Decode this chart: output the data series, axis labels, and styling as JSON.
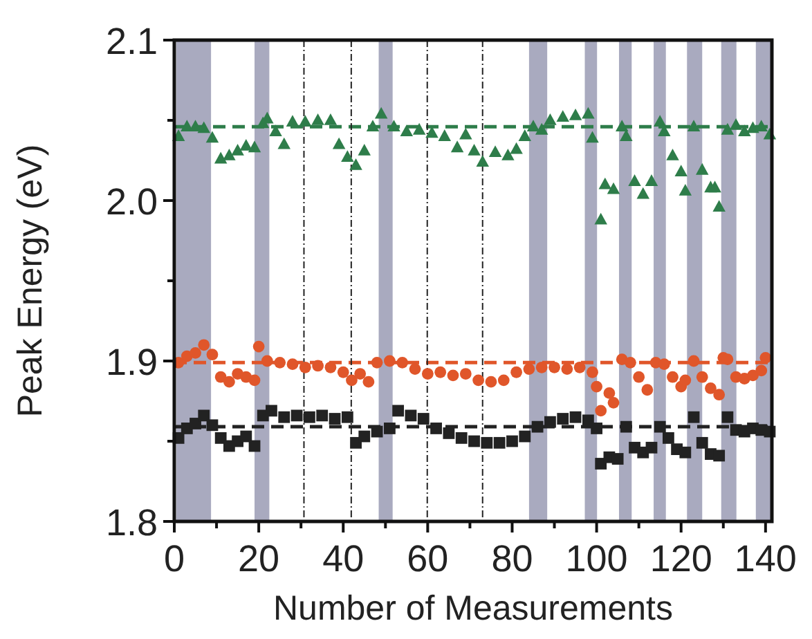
{
  "chart_data": {
    "type": "scatter",
    "xlabel": "Number of Measurements",
    "ylabel": "Peak Energy (eV)",
    "xlim": [
      0,
      141.5
    ],
    "ylim": [
      1.8,
      2.1
    ],
    "xticks": [
      0,
      {
        "value": 10,
        "label": null
      },
      20,
      {
        "value": 30,
        "label": null
      },
      40,
      {
        "value": 50,
        "label": null
      },
      60,
      {
        "value": 70,
        "label": null
      },
      80,
      {
        "value": 90,
        "label": null
      },
      100,
      {
        "value": 110,
        "label": null
      },
      120,
      {
        "value": 130,
        "label": null
      },
      140
    ],
    "yticks": [
      1.8,
      {
        "value": 1.85,
        "label": null
      },
      1.9,
      {
        "value": 1.95,
        "label": null
      },
      {
        "value": 2,
        "label": "2.0"
      },
      {
        "value": 2.05,
        "label": null
      },
      2.1
    ],
    "series": [
      {
        "color": "#2e7d4a",
        "marker": "triangle",
        "x": [
          1,
          3,
          5,
          7,
          9,
          11,
          13,
          15,
          17,
          19,
          21,
          22,
          24,
          26,
          28,
          31,
          34,
          37,
          39,
          41,
          43,
          45,
          47,
          49,
          52,
          55,
          58,
          61,
          64,
          67,
          69,
          71,
          73,
          76,
          79,
          81,
          83,
          85,
          87,
          89,
          92,
          95,
          98,
          99,
          101,
          102,
          104,
          106,
          107,
          109,
          111,
          113,
          115,
          116,
          118,
          120,
          121,
          123,
          125,
          127,
          128,
          129,
          131,
          133,
          135,
          137,
          139,
          141
        ],
        "values": [
          2.04,
          2.046,
          2.046,
          2.045,
          2.039,
          2.026,
          2.028,
          2.031,
          2.034,
          2.033,
          2.048,
          2.051,
          2.043,
          2.035,
          2.049,
          2.049,
          2.05,
          2.05,
          2.035,
          2.027,
          2.022,
          2.031,
          2.046,
          2.054,
          2.046,
          2.043,
          2.044,
          2.042,
          2.04,
          2.033,
          2.041,
          2.031,
          2.024,
          2.03,
          2.028,
          2.032,
          2.04,
          2.046,
          2.044,
          2.05,
          2.052,
          2.053,
          2.054,
          2.039,
          1.988,
          2.01,
          2.007,
          2.046,
          2.04,
          2.012,
          2.004,
          2.012,
          2.049,
          2.043,
          2.028,
          2.018,
          2.006,
          2.046,
          2.019,
          2.008,
          2.008,
          1.996,
          2.044,
          2.047,
          2.043,
          2.045,
          2.046,
          2.041
        ]
      },
      {
        "color": "#e0562a",
        "marker": "circle",
        "x": [
          1,
          3,
          5,
          7,
          9,
          11,
          13,
          15,
          17,
          19,
          20,
          22,
          25,
          28,
          31,
          34,
          37,
          40,
          42,
          44,
          46,
          48,
          51,
          54,
          57,
          60,
          63,
          66,
          69,
          72,
          75,
          78,
          81,
          84,
          87,
          90,
          93,
          96,
          99,
          100,
          101,
          103,
          104,
          106,
          108,
          110,
          112,
          114,
          116,
          118,
          120,
          121,
          123,
          125,
          127,
          129,
          130,
          131,
          133,
          135,
          137,
          139,
          140
        ],
        "values": [
          1.899,
          1.903,
          1.905,
          1.91,
          1.904,
          1.89,
          1.887,
          1.892,
          1.89,
          1.888,
          1.909,
          1.9,
          1.899,
          1.898,
          1.896,
          1.897,
          1.896,
          1.893,
          1.888,
          1.892,
          1.887,
          1.899,
          1.9,
          1.899,
          1.895,
          1.892,
          1.893,
          1.891,
          1.892,
          1.888,
          1.887,
          1.888,
          1.893,
          1.895,
          1.896,
          1.896,
          1.895,
          1.896,
          1.893,
          1.884,
          1.869,
          1.88,
          1.874,
          1.901,
          1.899,
          1.89,
          1.882,
          1.899,
          1.898,
          1.89,
          1.884,
          1.888,
          1.9,
          1.89,
          1.883,
          1.879,
          1.902,
          1.901,
          1.89,
          1.889,
          1.891,
          1.894,
          1.902
        ]
      },
      {
        "color": "#222222",
        "marker": "square",
        "x": [
          1,
          3,
          5,
          7,
          9,
          11,
          13,
          15,
          17,
          19,
          21,
          23,
          26,
          29,
          32,
          35,
          38,
          41,
          43,
          45,
          48,
          51,
          53,
          56,
          59,
          62,
          65,
          68,
          71,
          74,
          77,
          80,
          83,
          86,
          89,
          92,
          95,
          98,
          100,
          101,
          103,
          105,
          107,
          109,
          111,
          113,
          115,
          117,
          119,
          121,
          123,
          125,
          127,
          129,
          131,
          133,
          135,
          137,
          139,
          141
        ],
        "values": [
          1.852,
          1.858,
          1.861,
          1.866,
          1.86,
          1.852,
          1.847,
          1.85,
          1.853,
          1.847,
          1.866,
          1.869,
          1.865,
          1.866,
          1.865,
          1.866,
          1.864,
          1.865,
          1.849,
          1.853,
          1.856,
          1.858,
          1.869,
          1.866,
          1.864,
          1.858,
          1.855,
          1.852,
          1.85,
          1.849,
          1.849,
          1.85,
          1.853,
          1.859,
          1.862,
          1.864,
          1.865,
          1.863,
          1.858,
          1.836,
          1.84,
          1.839,
          1.859,
          1.846,
          1.843,
          1.846,
          1.859,
          1.852,
          1.845,
          1.843,
          1.865,
          1.849,
          1.842,
          1.841,
          1.865,
          1.857,
          1.856,
          1.858,
          1.857,
          1.856
        ]
      }
    ],
    "ref_lines": [
      {
        "axis": "y",
        "value": 2.046,
        "color": "#2e7d4a",
        "line_style": "dashed"
      },
      {
        "axis": "y",
        "value": 1.899,
        "color": "#e0562a",
        "line_style": "dashed"
      },
      {
        "axis": "y",
        "value": 1.859,
        "color": "#222222",
        "line_style": "dashed"
      },
      {
        "axis": "x",
        "value": 30.7,
        "color": "#222222",
        "line_style": "dotted"
      },
      {
        "axis": "x",
        "value": 41.9,
        "color": "#222222",
        "line_style": "dotted"
      },
      {
        "axis": "x",
        "value": 59.9,
        "color": "#222222",
        "line_style": "dotted"
      },
      {
        "axis": "x",
        "value": 73,
        "color": "#222222",
        "line_style": "dotted"
      }
    ],
    "bands": [
      {
        "axis": "x",
        "from": 0.5,
        "to": 8.7,
        "color": "#a9aabf"
      },
      {
        "axis": "x",
        "from": 19,
        "to": 22.5,
        "color": "#a9aabf"
      },
      {
        "axis": "x",
        "from": 48.4,
        "to": 51.7,
        "color": "#a9aabf"
      },
      {
        "axis": "x",
        "from": 84,
        "to": 88.3,
        "color": "#a9aabf"
      },
      {
        "axis": "x",
        "from": 97.2,
        "to": 100.1,
        "color": "#a9aabf"
      },
      {
        "axis": "x",
        "from": 105.3,
        "to": 108.3,
        "color": "#a9aabf"
      },
      {
        "axis": "x",
        "from": 113.5,
        "to": 116.4,
        "color": "#a9aabf"
      },
      {
        "axis": "x",
        "from": 121.4,
        "to": 125,
        "color": "#a9aabf"
      },
      {
        "axis": "x",
        "from": 129.5,
        "to": 133.1,
        "color": "#a9aabf"
      },
      {
        "axis": "x",
        "from": 137.7,
        "to": 141.3,
        "color": "#a9aabf"
      }
    ]
  }
}
